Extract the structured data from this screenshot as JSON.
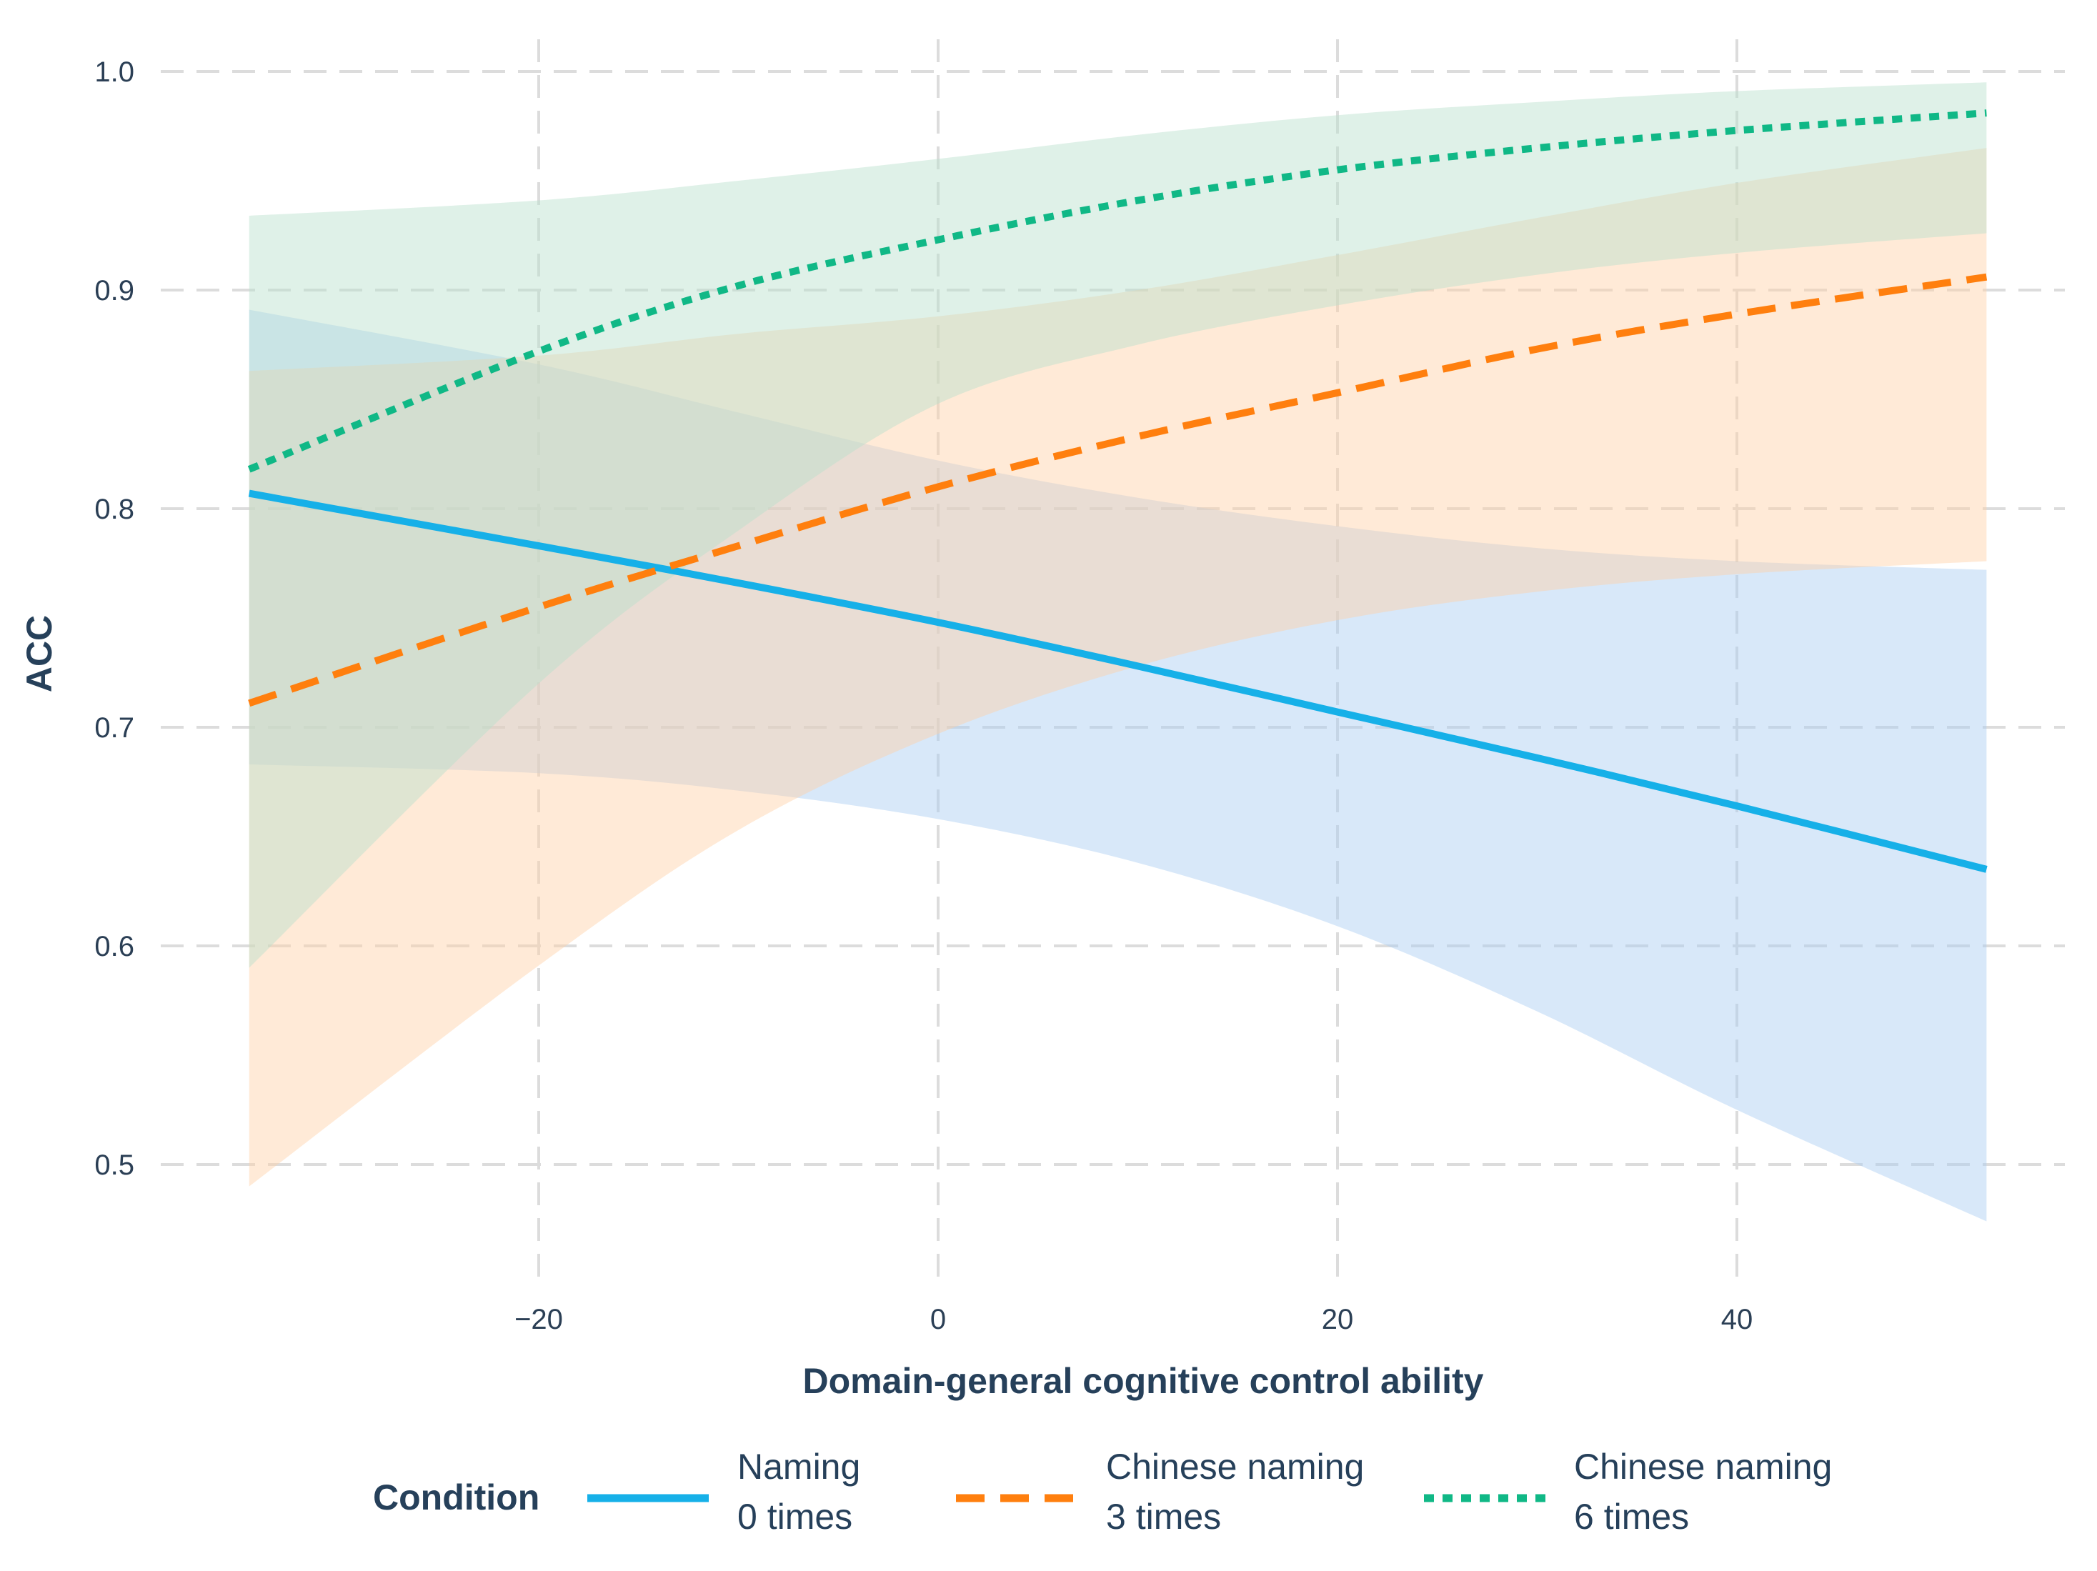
{
  "chart_data": {
    "type": "line",
    "title": "",
    "xlabel": "Domain-general cognitive control ability",
    "ylabel": "ACC",
    "xlim": [
      -36,
      56
    ],
    "ylim": [
      0.45,
      1.01
    ],
    "xticks": [
      -20,
      0,
      20,
      40
    ],
    "xtick_labels": [
      "−20",
      "0",
      "20",
      "40"
    ],
    "yticks": [
      0.5,
      0.6,
      0.7,
      0.8,
      0.9,
      1.0
    ],
    "ytick_labels": [
      "0.5",
      "0.6",
      "0.7",
      "0.8",
      "0.9",
      "1.0"
    ],
    "grid": true,
    "legend": {
      "title": "Condition",
      "position": "bottom"
    },
    "x": [
      -34.5,
      -20,
      -10,
      0,
      10,
      20,
      30,
      40,
      52.5
    ],
    "series": [
      {
        "name": "Naming 0 times",
        "label_lines": [
          "Naming",
          "0 times"
        ],
        "color": "#16b0e8",
        "ribbon_color": "#a8ccf2",
        "dash": "solid",
        "values": [
          0.807,
          0.783,
          0.766,
          0.748,
          0.728,
          0.707,
          0.686,
          0.664,
          0.635
        ],
        "lower": [
          0.683,
          0.679,
          0.671,
          0.658,
          0.638,
          0.609,
          0.57,
          0.525,
          0.474
        ],
        "upper": [
          0.891,
          0.866,
          0.844,
          0.822,
          0.805,
          0.792,
          0.782,
          0.776,
          0.772
        ]
      },
      {
        "name": "Chinese naming 3 times",
        "label_lines": [
          "Chinese naming",
          "3 times"
        ],
        "color": "#ff7f0e",
        "ribbon_color": "#ffd0a6",
        "dash": "dashed",
        "values": [
          0.711,
          0.755,
          0.783,
          0.81,
          0.833,
          0.853,
          0.873,
          0.889,
          0.906
        ],
        "lower": [
          0.49,
          0.591,
          0.653,
          0.697,
          0.728,
          0.749,
          0.762,
          0.77,
          0.776
        ],
        "upper": [
          0.863,
          0.87,
          0.88,
          0.888,
          0.9,
          0.916,
          0.933,
          0.949,
          0.965
        ]
      },
      {
        "name": "Chinese naming 6 times",
        "label_lines": [
          "Chinese naming",
          "6 times"
        ],
        "color": "#10b886",
        "ribbon_color": "#b8e0cc",
        "dash": "dotted",
        "values": [
          0.818,
          0.872,
          0.902,
          0.923,
          0.941,
          0.955,
          0.965,
          0.973,
          0.981
        ],
        "lower": [
          0.59,
          0.72,
          0.79,
          0.848,
          0.875,
          0.893,
          0.907,
          0.917,
          0.926
        ],
        "upper": [
          0.934,
          0.941,
          0.95,
          0.96,
          0.971,
          0.98,
          0.986,
          0.991,
          0.995
        ]
      }
    ]
  }
}
